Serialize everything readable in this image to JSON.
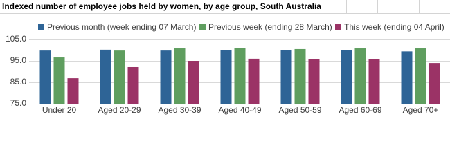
{
  "chart_data": {
    "type": "bar",
    "title": "Indexed number of employee jobs held by women, by age group, South Australia",
    "categories": [
      "Under 20",
      "Aged 20-29",
      "Aged 30-39",
      "Aged 40-49",
      "Aged 50-59",
      "Aged 60-69",
      "Aged 70+"
    ],
    "series": [
      {
        "name": "Previous month (week ending 07 March)",
        "color": "#2e6496",
        "values": [
          99.8,
          100.2,
          99.8,
          99.9,
          99.9,
          99.9,
          99.4
        ]
      },
      {
        "name": "Previous week (ending 28 March)",
        "color": "#5f9e5f",
        "values": [
          96.6,
          99.8,
          100.8,
          101.0,
          100.5,
          100.8,
          100.8
        ]
      },
      {
        "name": "This week (ending 04 April)",
        "color": "#9b3366",
        "values": [
          86.9,
          92.1,
          95.0,
          96.0,
          95.7,
          95.8,
          94.0
        ]
      }
    ],
    "ylim": [
      75,
      105
    ],
    "yticks": [
      {
        "value": 75,
        "label": "75.0"
      },
      {
        "value": 85,
        "label": "85.0"
      },
      {
        "value": 95,
        "label": "95.0"
      },
      {
        "value": 105,
        "label": "105.0"
      }
    ],
    "grid": true
  }
}
